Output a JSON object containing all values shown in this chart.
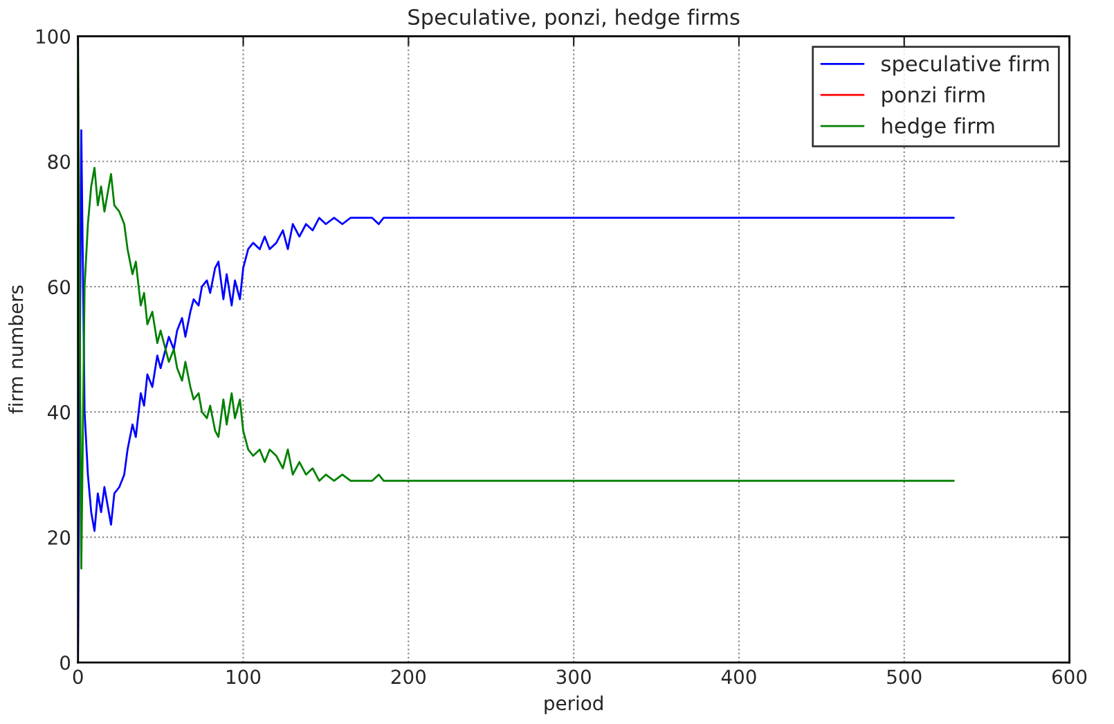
{
  "chart_data": {
    "type": "line",
    "title": "Speculative, ponzi, hedge firms",
    "xlabel": "period",
    "ylabel": "firm numbers",
    "xlim": [
      0,
      600
    ],
    "xticks": [
      0,
      100,
      200,
      300,
      400,
      500,
      600
    ],
    "ylim": [
      0,
      100
    ],
    "yticks": [
      0,
      20,
      40,
      60,
      80,
      100
    ],
    "grid": true,
    "legend": "top right",
    "line_style": "solid",
    "marker": "none",
    "series": [
      {
        "name": "speculative firm",
        "color": "#0000ff",
        "x": [
          0,
          2,
          4,
          6,
          8,
          10,
          12,
          14,
          16,
          18,
          20,
          22,
          25,
          28,
          30,
          33,
          35,
          38,
          40,
          42,
          45,
          48,
          50,
          53,
          55,
          58,
          60,
          63,
          65,
          68,
          70,
          73,
          75,
          78,
          80,
          83,
          85,
          88,
          90,
          93,
          95,
          98,
          100,
          103,
          106,
          110,
          113,
          116,
          120,
          124,
          127,
          130,
          134,
          138,
          142,
          146,
          150,
          155,
          160,
          165,
          170,
          178,
          182,
          185,
          530
        ],
        "values": [
          0,
          85,
          40,
          30,
          24,
          21,
          27,
          24,
          28,
          25,
          22,
          27,
          28,
          30,
          34,
          38,
          36,
          43,
          41,
          46,
          44,
          49,
          47,
          50,
          52,
          50,
          53,
          55,
          52,
          56,
          58,
          57,
          60,
          61,
          59,
          63,
          64,
          58,
          62,
          57,
          61,
          58,
          63,
          66,
          67,
          66,
          68,
          66,
          67,
          69,
          66,
          70,
          68,
          70,
          69,
          71,
          70,
          71,
          70,
          71,
          71,
          71,
          70,
          71,
          71
        ]
      },
      {
        "name": "ponzi firm",
        "color": "#ff0000"
      },
      {
        "name": "hedge firm",
        "color": "#008000",
        "x": [
          0,
          2,
          4,
          6,
          8,
          10,
          12,
          14,
          16,
          18,
          20,
          22,
          25,
          28,
          30,
          33,
          35,
          38,
          40,
          42,
          45,
          48,
          50,
          53,
          55,
          58,
          60,
          63,
          65,
          68,
          70,
          73,
          75,
          78,
          80,
          83,
          85,
          88,
          90,
          93,
          95,
          98,
          100,
          103,
          106,
          110,
          113,
          116,
          120,
          124,
          127,
          130,
          134,
          138,
          142,
          146,
          150,
          155,
          160,
          165,
          170,
          178,
          182,
          185,
          530
        ],
        "values": [
          100,
          15,
          60,
          70,
          76,
          79,
          73,
          76,
          72,
          75,
          78,
          73,
          72,
          70,
          66,
          62,
          64,
          57,
          59,
          54,
          56,
          51,
          53,
          50,
          48,
          50,
          47,
          45,
          48,
          44,
          42,
          43,
          40,
          39,
          41,
          37,
          36,
          42,
          38,
          43,
          39,
          42,
          37,
          34,
          33,
          34,
          32,
          34,
          33,
          31,
          34,
          30,
          32,
          30,
          31,
          29,
          30,
          29,
          30,
          29,
          29,
          29,
          30,
          29,
          29
        ]
      }
    ]
  }
}
